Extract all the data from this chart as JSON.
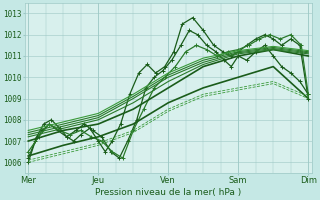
{
  "xlabel": "Pression niveau de la mer( hPa )",
  "bg_color": "#c5e8e5",
  "plot_bg_color": "#d8f0ed",
  "grid_color": "#9dc8c5",
  "dark_green": "#1a5c1a",
  "mid_green": "#2a7a2a",
  "light_green": "#3a9a3a",
  "ylim": [
    1005.5,
    1013.5
  ],
  "xlim": [
    -0.05,
    4.05
  ],
  "xtick_labels": [
    "Mer",
    "Jeu",
    "Ven",
    "Sam",
    "Dim"
  ],
  "ytick_values": [
    1006,
    1007,
    1008,
    1009,
    1010,
    1011,
    1012,
    1013
  ],
  "series": [
    {
      "x": [
        0.0,
        0.12,
        0.22,
        0.33,
        0.45,
        0.55,
        0.65,
        0.75,
        0.88,
        1.0,
        1.1,
        1.2,
        1.32,
        1.45,
        1.58,
        1.7,
        1.82,
        1.95,
        2.08,
        2.2,
        2.35,
        2.5,
        2.65,
        2.78,
        2.9,
        3.0,
        3.12,
        3.25,
        3.38,
        3.5,
        3.62,
        3.75,
        3.88,
        4.0
      ],
      "y": [
        1006.0,
        1007.2,
        1007.8,
        1008.0,
        1007.6,
        1007.2,
        1007.0,
        1007.3,
        1007.6,
        1007.0,
        1006.5,
        1007.0,
        1007.8,
        1009.2,
        1010.2,
        1010.6,
        1010.2,
        1010.5,
        1011.2,
        1012.5,
        1012.8,
        1012.2,
        1011.5,
        1011.2,
        1011.0,
        1011.2,
        1011.5,
        1011.8,
        1012.0,
        1011.8,
        1011.5,
        1011.8,
        1011.5,
        1009.0
      ],
      "style": "-",
      "marker": "+",
      "lw": 0.9,
      "color": "#1a5c1a",
      "ms": 3.5
    },
    {
      "x": [
        0.0,
        0.1,
        0.2,
        0.3,
        0.42,
        0.55,
        0.68,
        0.8,
        0.92,
        1.05,
        1.18,
        1.3,
        1.42,
        1.55,
        1.68,
        1.8,
        1.92,
        2.05,
        2.18,
        2.3,
        2.42,
        2.55,
        2.68,
        2.8,
        2.9,
        3.0,
        3.12,
        3.25,
        3.38,
        3.5,
        3.62,
        3.75,
        3.88,
        4.0
      ],
      "y": [
        1006.2,
        1007.0,
        1007.5,
        1007.8,
        1007.5,
        1007.2,
        1007.5,
        1007.8,
        1007.5,
        1007.2,
        1006.5,
        1006.2,
        1007.0,
        1008.0,
        1009.5,
        1010.0,
        1010.3,
        1010.8,
        1011.5,
        1012.2,
        1012.0,
        1011.5,
        1011.2,
        1010.8,
        1010.5,
        1011.0,
        1010.8,
        1011.2,
        1011.5,
        1011.0,
        1010.5,
        1010.2,
        1009.8,
        1009.2
      ],
      "style": "-",
      "marker": "+",
      "lw": 0.9,
      "color": "#1a5c1a",
      "ms": 3.5
    },
    {
      "x": [
        0.0,
        0.15,
        0.3,
        0.45,
        0.6,
        0.75,
        0.9,
        1.05,
        1.2,
        1.35,
        1.5,
        1.65,
        1.8,
        1.95,
        2.1,
        2.25,
        2.4,
        2.55,
        2.7,
        2.85,
        3.0,
        3.15,
        3.3,
        3.45,
        3.6,
        3.75,
        3.9,
        4.0
      ],
      "y": [
        1006.5,
        1007.2,
        1007.8,
        1007.5,
        1007.3,
        1007.5,
        1007.2,
        1007.0,
        1006.5,
        1006.2,
        1007.5,
        1008.5,
        1009.5,
        1010.0,
        1010.5,
        1011.2,
        1011.5,
        1011.3,
        1011.0,
        1011.2,
        1011.3,
        1011.5,
        1011.8,
        1012.0,
        1011.8,
        1012.0,
        1011.5,
        1009.2
      ],
      "style": "-",
      "marker": "+",
      "lw": 0.9,
      "color": "#2a7a2a",
      "ms": 3.0
    },
    {
      "x": [
        0.0,
        0.5,
        1.0,
        1.5,
        2.0,
        2.5,
        3.0,
        3.5,
        4.0
      ],
      "y": [
        1006.3,
        1006.8,
        1007.2,
        1007.8,
        1008.8,
        1009.5,
        1010.0,
        1010.5,
        1009.0
      ],
      "style": "-",
      "marker": null,
      "lw": 1.2,
      "color": "#1a5c1a",
      "ms": 0
    },
    {
      "x": [
        0.0,
        0.5,
        1.0,
        1.5,
        2.0,
        2.5,
        3.0,
        3.5,
        4.0
      ],
      "y": [
        1007.0,
        1007.5,
        1007.8,
        1008.5,
        1009.5,
        1010.5,
        1011.0,
        1011.3,
        1011.0
      ],
      "style": "-",
      "marker": null,
      "lw": 1.2,
      "color": "#1a5c1a",
      "ms": 0
    },
    {
      "x": [
        0.0,
        0.5,
        1.0,
        1.5,
        2.0,
        2.5,
        3.0,
        3.5,
        4.0
      ],
      "y": [
        1007.2,
        1007.6,
        1008.0,
        1008.8,
        1009.8,
        1010.6,
        1011.1,
        1011.3,
        1011.1
      ],
      "style": "-",
      "marker": null,
      "lw": 0.8,
      "color": "#2a7a2a",
      "ms": 0
    },
    {
      "x": [
        0.0,
        0.5,
        1.0,
        1.5,
        2.0,
        2.5,
        3.0,
        3.5,
        4.0
      ],
      "y": [
        1007.3,
        1007.7,
        1008.1,
        1009.0,
        1010.0,
        1010.7,
        1011.15,
        1011.35,
        1011.15
      ],
      "style": "-",
      "marker": null,
      "lw": 0.8,
      "color": "#2a7a2a",
      "ms": 0
    },
    {
      "x": [
        0.0,
        0.5,
        1.0,
        1.5,
        2.0,
        2.5,
        3.0,
        3.5,
        4.0
      ],
      "y": [
        1007.4,
        1007.8,
        1008.2,
        1009.1,
        1010.1,
        1010.8,
        1011.2,
        1011.4,
        1011.2
      ],
      "style": "-",
      "marker": null,
      "lw": 0.8,
      "color": "#2a7a2a",
      "ms": 0
    },
    {
      "x": [
        0.0,
        0.5,
        1.0,
        1.5,
        2.0,
        2.5,
        3.0,
        3.5,
        4.0
      ],
      "y": [
        1007.5,
        1007.9,
        1008.3,
        1009.2,
        1010.2,
        1010.9,
        1011.25,
        1011.45,
        1011.25
      ],
      "style": "-",
      "marker": null,
      "lw": 0.8,
      "color": "#3a9a3a",
      "ms": 0
    },
    {
      "x": [
        0.0,
        0.5,
        1.0,
        1.5,
        2.0,
        2.5,
        3.0,
        3.5,
        4.0
      ],
      "y": [
        1006.1,
        1006.5,
        1006.9,
        1007.5,
        1008.5,
        1009.2,
        1009.5,
        1009.8,
        1009.1
      ],
      "style": "--",
      "marker": null,
      "lw": 0.6,
      "color": "#3a9a3a",
      "ms": 0
    },
    {
      "x": [
        0.0,
        0.5,
        1.0,
        1.5,
        2.0,
        2.5,
        3.0,
        3.5,
        4.0
      ],
      "y": [
        1006.0,
        1006.4,
        1006.8,
        1007.4,
        1008.4,
        1009.1,
        1009.4,
        1009.7,
        1009.0
      ],
      "style": "--",
      "marker": null,
      "lw": 0.6,
      "color": "#3a9a3a",
      "ms": 0
    }
  ]
}
